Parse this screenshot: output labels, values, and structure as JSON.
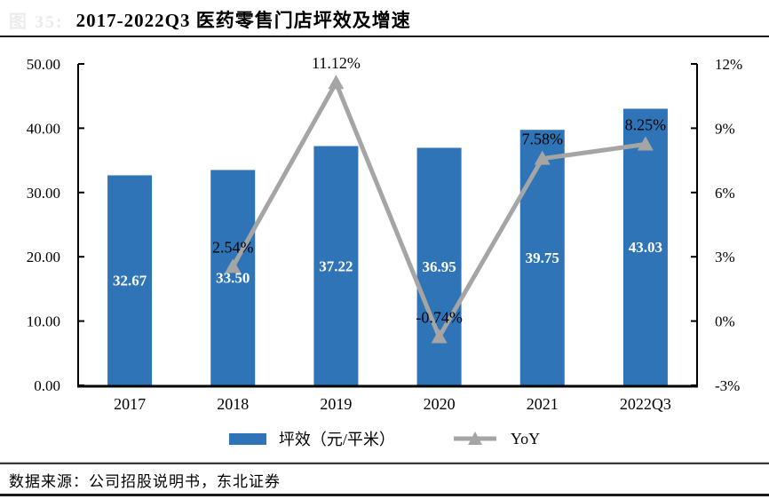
{
  "header": {
    "figure_prefix": "图 35:",
    "title": "2017-2022Q3 医药零售门店坪效及增速"
  },
  "chart_data": {
    "type": "bar",
    "title": "2017-2022Q3 医药零售门店坪效及增速",
    "categories": [
      "2017",
      "2018",
      "2019",
      "2020",
      "2021",
      "2022Q3"
    ],
    "series": [
      {
        "name": "坪效（元/平米）",
        "type": "bar",
        "axis": "left",
        "color": "#2E74B6",
        "values": [
          32.67,
          33.5,
          37.22,
          36.95,
          39.75,
          43.03
        ],
        "labels": [
          "32.67",
          "33.50",
          "37.22",
          "36.95",
          "39.75",
          "43.03"
        ]
      },
      {
        "name": "YoY",
        "type": "line",
        "axis": "right",
        "color": "#A5A5A5",
        "marker": "triangle-up",
        "values": [
          null,
          2.54,
          11.12,
          -0.74,
          7.58,
          8.25
        ],
        "labels": [
          null,
          "2.54%",
          "11.12%",
          "-0.74%",
          "7.58%",
          "8.25%"
        ]
      }
    ],
    "left_axis": {
      "range": [
        0,
        50
      ],
      "ticks": [
        {
          "v": 0,
          "label": "0.00"
        },
        {
          "v": 10,
          "label": "10.00"
        },
        {
          "v": 20,
          "label": "20.00"
        },
        {
          "v": 30,
          "label": "30.00"
        },
        {
          "v": 40,
          "label": "40.00"
        },
        {
          "v": 50,
          "label": "50.00"
        }
      ]
    },
    "right_axis": {
      "range": [
        -3,
        12
      ],
      "ticks": [
        {
          "v": -3,
          "label": "-3%"
        },
        {
          "v": 0,
          "label": "0%"
        },
        {
          "v": 3,
          "label": "3%"
        },
        {
          "v": 6,
          "label": "6%"
        },
        {
          "v": 9,
          "label": "9%"
        },
        {
          "v": 12,
          "label": "12%"
        }
      ]
    },
    "grid": false,
    "legend_position": "bottom"
  },
  "footer": {
    "source": "数据来源：公司招股说明书，东北证券"
  },
  "colors": {
    "bar": "#2E74B6",
    "line": "#A5A5A5",
    "axis": "#000000"
  }
}
